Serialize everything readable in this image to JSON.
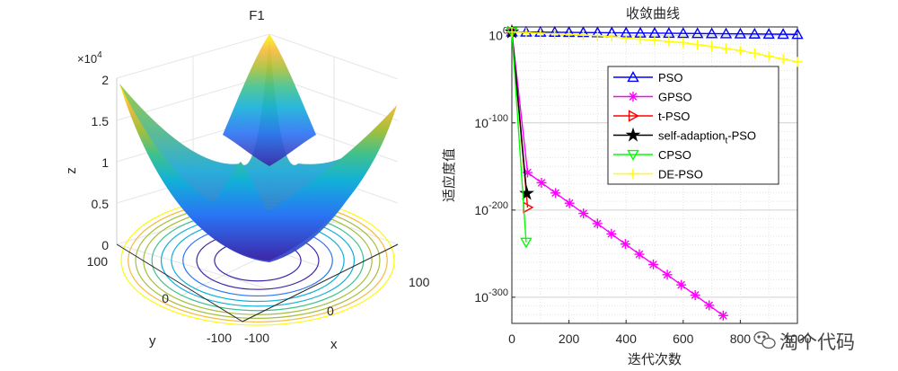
{
  "chart_data": [
    {
      "type": "surface3d",
      "title": "F1",
      "xlabel": "x",
      "ylabel": "y",
      "zlabel": "z",
      "zscale_label": "×10",
      "zscale_exponent": "4",
      "xticks": [
        "-100",
        "0",
        "100"
      ],
      "yticks": [
        "100",
        "0",
        "-100"
      ],
      "zticks": [
        "2",
        "1.5",
        "1",
        "0.5",
        "0"
      ],
      "xlim": [
        -100,
        100
      ],
      "ylim": [
        -100,
        100
      ],
      "zlim": [
        0,
        20000
      ],
      "function": "sphere: z = x^2 + y^2",
      "contour_levels": [
        1000,
        2000,
        3000,
        4000,
        5000,
        6000,
        7000,
        8000,
        9000,
        10000
      ],
      "colormap": [
        "#3e26a8",
        "#2a73f4",
        "#12b0d8",
        "#3fc18e",
        "#a6bf3b",
        "#f7ba3c",
        "#f9fb0e"
      ],
      "grid": true
    },
    {
      "type": "line",
      "title": "收敛曲线",
      "xlabel": "迭代次数",
      "ylabel": "适应度值",
      "xlim": [
        0,
        1000
      ],
      "yscale": "log",
      "ylim_exponent": [
        -330,
        10
      ],
      "xticks": [
        "0",
        "200",
        "400",
        "600",
        "800",
        "1000"
      ],
      "yticks": [
        {
          "base": "10",
          "exp": "0",
          "value": 0
        },
        {
          "base": "10",
          "exp": "-100",
          "value": -100
        },
        {
          "base": "10",
          "exp": "-200",
          "value": -200
        },
        {
          "base": "10",
          "exp": "-300",
          "value": -300
        }
      ],
      "grid": "minor-dotted",
      "legend_position": "inside-top-right",
      "series": [
        {
          "name": "PSO",
          "color": "#0000ff",
          "marker": "triangle-up",
          "x": [
            0,
            1000
          ],
          "log10_y": [
            4.3,
            1.5
          ]
        },
        {
          "name": "GPSO",
          "color": "#ff00ff",
          "marker": "asterisk",
          "x": [
            0,
            55,
            740
          ],
          "log10_y": [
            4.3,
            -157,
            -321
          ]
        },
        {
          "name": "t-PSO",
          "color": "#ff0000",
          "marker": "triangle-right",
          "x": [
            0,
            55
          ],
          "log10_y": [
            4.3,
            -197
          ]
        },
        {
          "name": "self-adaption",
          "name_sub": "t",
          "name_suffix": "-PSO",
          "color": "#000000",
          "marker": "star",
          "x": [
            0,
            52
          ],
          "log10_y": [
            4.3,
            -181
          ]
        },
        {
          "name": "CPSO",
          "color": "#00ff00",
          "marker": "triangle-down",
          "x": [
            0,
            50
          ],
          "log10_y": [
            4.3,
            -237
          ]
        },
        {
          "name": "DE-PSO",
          "color": "#ffff00",
          "marker": "plus",
          "x": [
            0,
            300,
            600,
            800,
            1000
          ],
          "log10_y": [
            4.3,
            0,
            -8,
            -17,
            -30
          ]
        }
      ]
    }
  ],
  "watermark": {
    "icon": "wechat-icon",
    "text": "淘个代码"
  }
}
